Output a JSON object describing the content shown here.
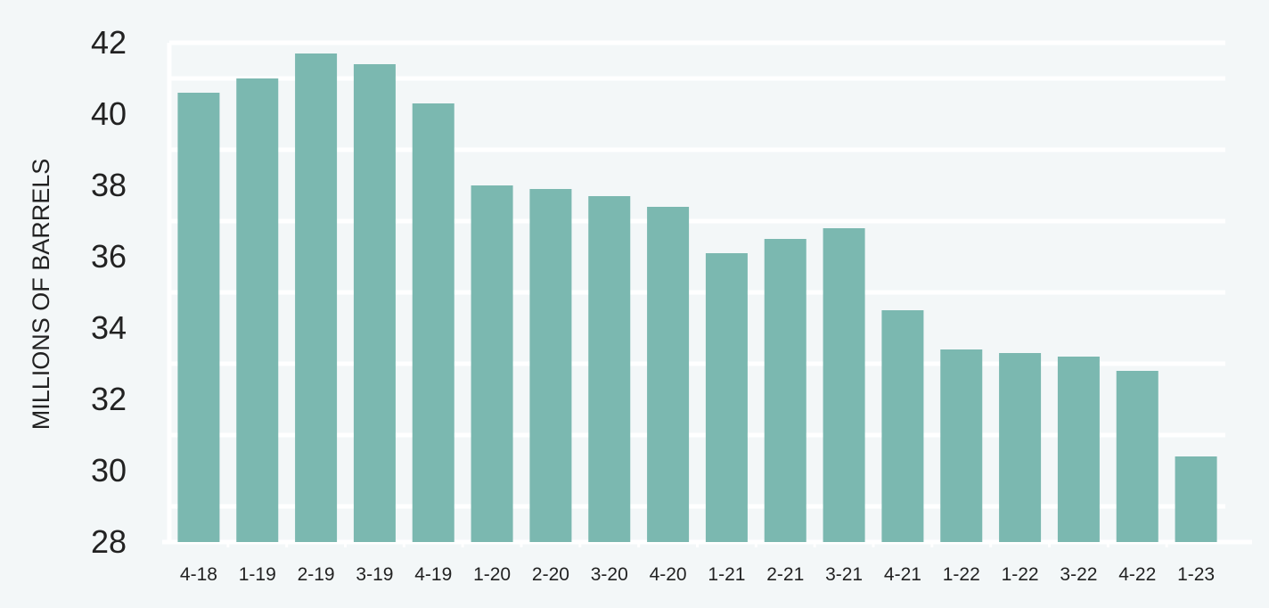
{
  "chart_data": {
    "type": "bar",
    "title": "",
    "xlabel": "",
    "ylabel": "MILLIONS OF BARRELS",
    "categories": [
      "4-18",
      "1-19",
      "2-19",
      "3-19",
      "4-19",
      "1-20",
      "2-20",
      "3-20",
      "4-20",
      "1-21",
      "2-21",
      "3-21",
      "4-21",
      "1-22",
      "1-22",
      "3-22",
      "4-22",
      "1-23"
    ],
    "values": [
      40.6,
      41.0,
      41.7,
      41.4,
      40.3,
      38.0,
      37.9,
      37.7,
      37.4,
      36.1,
      36.5,
      36.8,
      34.5,
      33.4,
      33.3,
      33.2,
      32.8,
      30.4
    ],
    "ylim": [
      28,
      42
    ],
    "yticks": [
      28,
      30,
      32,
      34,
      36,
      38,
      40,
      42
    ],
    "grid": true,
    "colors": {
      "bar": "#7bb8b0",
      "background": "#f3f7f8",
      "grid": "#ffffff",
      "text": "#222222"
    }
  }
}
